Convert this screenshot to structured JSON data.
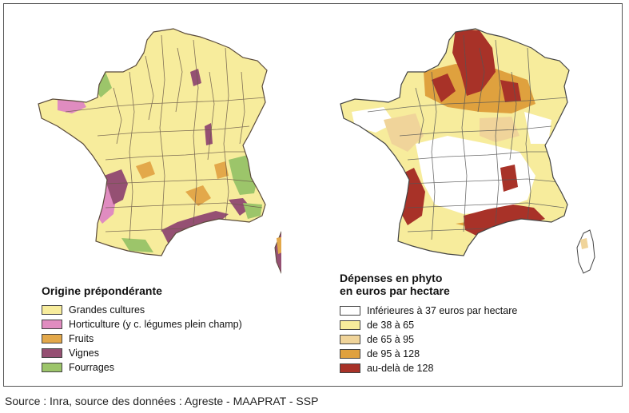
{
  "left_map": {
    "legend_title": "Origine prépondérante",
    "legend": [
      {
        "label": "Grandes cultures",
        "color": "#f7ec9c"
      },
      {
        "label": "Horticulture (y c. légumes plein champ)",
        "color": "#e08cc0"
      },
      {
        "label": "Fruits",
        "color": "#e3a84a"
      },
      {
        "label": "Vignes",
        "color": "#955073"
      },
      {
        "label": "Fourrages",
        "color": "#9cc56a"
      }
    ]
  },
  "right_map": {
    "legend_title_line1": "Dépenses en phyto",
    "legend_title_line2": "en euros par hectare",
    "legend": [
      {
        "label": "Inférieures à 37 euros par hectare",
        "color": "#ffffff"
      },
      {
        "label": "de 38 à 65",
        "color": "#f7ec9c"
      },
      {
        "label": "de 65 à 95",
        "color": "#f0d49a"
      },
      {
        "label": "de 95 à 128",
        "color": "#dfa13e"
      },
      {
        "label": "au-delà de 128",
        "color": "#a83228"
      }
    ]
  },
  "source": "Source : Inra, source des données : Agreste - MAAPRAT - SSP"
}
